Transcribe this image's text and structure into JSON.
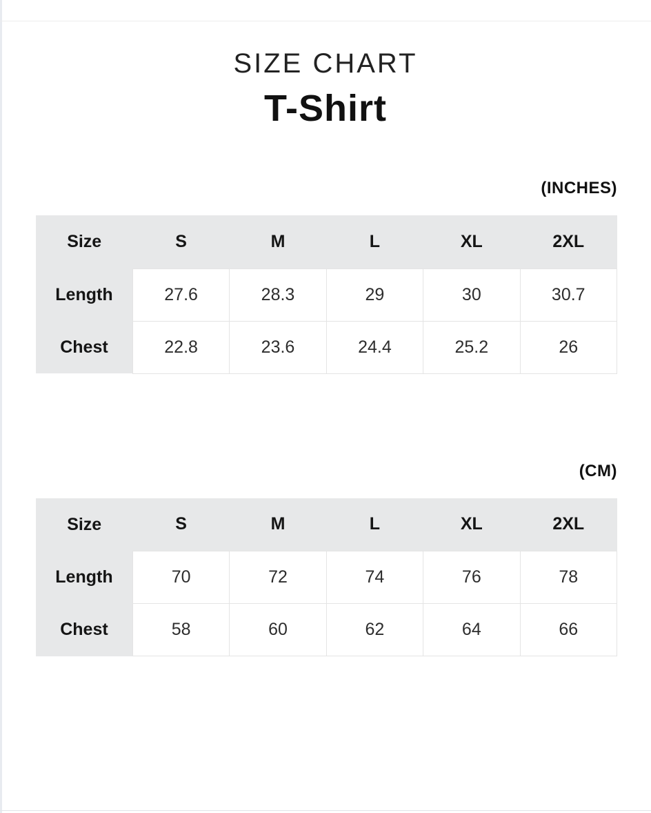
{
  "header": {
    "title": "SIZE CHART",
    "product": "T-Shirt"
  },
  "chart_data": [
    {
      "type": "table",
      "unit": "(INCHES)",
      "columns": [
        "Size",
        "S",
        "M",
        "L",
        "XL",
        "2XL"
      ],
      "rows": [
        {
          "label": "Length",
          "values": [
            27.6,
            28.3,
            29,
            30,
            30.7
          ]
        },
        {
          "label": "Chest",
          "values": [
            22.8,
            23.6,
            24.4,
            25.2,
            26
          ]
        }
      ]
    },
    {
      "type": "table",
      "unit": "(CM)",
      "columns": [
        "Size",
        "S",
        "M",
        "L",
        "XL",
        "2XL"
      ],
      "rows": [
        {
          "label": "Length",
          "values": [
            70,
            72,
            74,
            76,
            78
          ]
        },
        {
          "label": "Chest",
          "values": [
            58,
            60,
            62,
            64,
            66
          ]
        }
      ]
    }
  ],
  "colors": {
    "table_header_bg": "#e7e8e9",
    "cell_border": "#e4e4e4",
    "text": "#111111",
    "left_strip": "#e8ebf0"
  }
}
